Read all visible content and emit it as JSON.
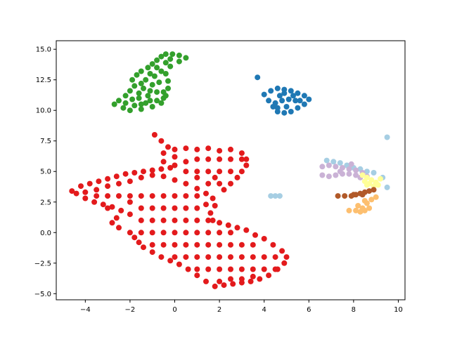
{
  "chart_data": {
    "type": "scatter",
    "title": "",
    "xlabel": "",
    "ylabel": "",
    "xlim": [
      -5.3,
      10.3
    ],
    "ylim": [
      -5.5,
      15.7
    ],
    "x_ticks": [
      -4,
      -2,
      0,
      2,
      4,
      6,
      8,
      10
    ],
    "x_tick_labels": [
      "−4",
      "−2",
      "0",
      "2",
      "4",
      "6",
      "8",
      "10"
    ],
    "y_ticks": [
      -5.0,
      -2.5,
      0.0,
      2.5,
      5.0,
      7.5,
      10.0,
      12.5,
      15.0
    ],
    "y_tick_labels": [
      "−5.0",
      "−2.5",
      "0.0",
      "2.5",
      "5.0",
      "7.5",
      "10.0",
      "12.5",
      "15.0"
    ],
    "grid": false,
    "legend": "none",
    "marker_radius": 4,
    "series": [
      {
        "color": "#e31a1c",
        "points": [
          [
            -4.6,
            3.4
          ],
          [
            -4.2,
            3.8
          ],
          [
            -3.8,
            4.0
          ],
          [
            -3.4,
            4.2
          ],
          [
            -3.0,
            4.4
          ],
          [
            -2.6,
            4.6
          ],
          [
            -2.2,
            4.8
          ],
          [
            -1.8,
            4.9
          ],
          [
            -1.4,
            5.0
          ],
          [
            -1.0,
            5.1
          ],
          [
            -0.6,
            5.2
          ],
          [
            -0.2,
            5.3
          ],
          [
            -0.9,
            8.0
          ],
          [
            -0.6,
            7.5
          ],
          [
            -0.3,
            7.0
          ],
          [
            0.0,
            6.8
          ],
          [
            0.5,
            6.9
          ],
          [
            1.0,
            6.8
          ],
          [
            1.5,
            6.9
          ],
          [
            2.0,
            6.7
          ],
          [
            2.5,
            6.8
          ],
          [
            3.0,
            6.5
          ],
          [
            3.2,
            6.0
          ],
          [
            3.2,
            5.5
          ],
          [
            3.0,
            5.0
          ],
          [
            2.8,
            4.5
          ],
          [
            2.5,
            4.0
          ],
          [
            -4.4,
            3.2
          ],
          [
            -4.0,
            2.8
          ],
          [
            -3.6,
            2.5
          ],
          [
            -3.2,
            2.3
          ],
          [
            -2.8,
            2.1
          ],
          [
            -2.4,
            1.8
          ],
          [
            -2.0,
            1.5
          ],
          [
            -2.6,
            1.2
          ],
          [
            -2.8,
            0.8
          ],
          [
            -2.5,
            0.4
          ],
          [
            -2.0,
            0.0
          ],
          [
            -1.8,
            -0.4
          ],
          [
            -1.6,
            -0.8
          ],
          [
            -1.4,
            -1.2
          ],
          [
            -1.0,
            -1.6
          ],
          [
            -0.6,
            -2.0
          ],
          [
            -0.2,
            -2.3
          ],
          [
            0.2,
            -2.6
          ],
          [
            0.6,
            -3.0
          ],
          [
            1.0,
            -3.5
          ],
          [
            1.4,
            -4.0
          ],
          [
            1.8,
            -4.4
          ],
          [
            2.2,
            -4.3
          ],
          [
            2.6,
            -4.2
          ],
          [
            3.0,
            -4.1
          ],
          [
            3.4,
            -4.0
          ],
          [
            3.8,
            -3.8
          ],
          [
            4.2,
            -3.5
          ],
          [
            4.6,
            -3.0
          ],
          [
            4.9,
            -2.5
          ],
          [
            5.0,
            -2.0
          ],
          [
            4.8,
            -1.5
          ],
          [
            4.4,
            -1.0
          ],
          [
            4.0,
            -0.5
          ],
          [
            3.6,
            -0.2
          ],
          [
            3.2,
            0.2
          ],
          [
            2.8,
            0.4
          ],
          [
            2.4,
            0.6
          ],
          [
            2.0,
            0.8
          ],
          [
            1.7,
            1.0
          ],
          [
            1.6,
            1.6
          ],
          [
            1.8,
            2.2
          ],
          [
            1.7,
            2.8
          ],
          [
            1.4,
            3.2
          ],
          [
            1.0,
            3.6
          ],
          [
            0.5,
            4.0
          ],
          [
            0.0,
            4.3
          ],
          [
            -0.5,
            4.6
          ],
          [
            -1.0,
            4.7
          ],
          [
            -1.5,
            4.5
          ],
          [
            -2.0,
            4.2
          ],
          [
            -2.5,
            4.0
          ],
          [
            -3.0,
            3.8
          ],
          [
            -3.5,
            3.5
          ],
          [
            -4.0,
            3.3
          ],
          [
            -3.5,
            3.0
          ],
          [
            -3.0,
            3.0
          ],
          [
            -2.5,
            3.0
          ],
          [
            -2.0,
            3.0
          ],
          [
            -1.5,
            3.0
          ],
          [
            -1.0,
            3.0
          ],
          [
            -0.5,
            3.0
          ],
          [
            0.0,
            3.0
          ],
          [
            0.5,
            3.0
          ],
          [
            1.0,
            3.0
          ],
          [
            -3.0,
            2.0
          ],
          [
            -2.0,
            2.5
          ],
          [
            -1.5,
            2.0
          ],
          [
            -1.0,
            2.0
          ],
          [
            -0.5,
            2.0
          ],
          [
            0.0,
            2.0
          ],
          [
            0.5,
            2.0
          ],
          [
            1.0,
            2.0
          ],
          [
            1.4,
            2.3
          ],
          [
            -1.5,
            1.0
          ],
          [
            -1.0,
            1.0
          ],
          [
            -0.5,
            1.0
          ],
          [
            0.0,
            1.0
          ],
          [
            0.5,
            1.0
          ],
          [
            1.0,
            1.0
          ],
          [
            1.5,
            1.0
          ],
          [
            -1.5,
            0.0
          ],
          [
            -1.0,
            0.0
          ],
          [
            -0.5,
            0.0
          ],
          [
            0.0,
            0.0
          ],
          [
            0.5,
            0.0
          ],
          [
            1.0,
            0.0
          ],
          [
            1.5,
            0.0
          ],
          [
            2.0,
            0.0
          ],
          [
            2.5,
            0.0
          ],
          [
            -1.0,
            -1.0
          ],
          [
            -0.5,
            -1.0
          ],
          [
            0.0,
            -1.0
          ],
          [
            0.5,
            -1.0
          ],
          [
            1.0,
            -1.0
          ],
          [
            1.5,
            -1.0
          ],
          [
            2.0,
            -1.0
          ],
          [
            2.5,
            -1.0
          ],
          [
            3.0,
            -1.0
          ],
          [
            3.5,
            -1.0
          ],
          [
            0.0,
            -2.0
          ],
          [
            0.5,
            -2.0
          ],
          [
            1.0,
            -2.0
          ],
          [
            1.5,
            -2.0
          ],
          [
            2.0,
            -2.0
          ],
          [
            2.5,
            -2.0
          ],
          [
            3.0,
            -2.0
          ],
          [
            3.5,
            -2.0
          ],
          [
            4.0,
            -2.0
          ],
          [
            4.5,
            -2.0
          ],
          [
            1.0,
            -3.0
          ],
          [
            1.5,
            -3.0
          ],
          [
            2.0,
            -3.0
          ],
          [
            2.5,
            -3.0
          ],
          [
            3.0,
            -3.0
          ],
          [
            3.5,
            -3.0
          ],
          [
            4.0,
            -3.0
          ],
          [
            4.5,
            -3.0
          ],
          [
            2.0,
            -4.0
          ],
          [
            2.5,
            -3.8
          ],
          [
            3.0,
            -3.8
          ],
          [
            3.5,
            -3.6
          ],
          [
            0.0,
            5.5
          ],
          [
            0.5,
            5.8
          ],
          [
            1.0,
            6.0
          ],
          [
            1.5,
            6.0
          ],
          [
            2.0,
            6.0
          ],
          [
            2.5,
            6.0
          ],
          [
            3.0,
            6.0
          ],
          [
            0.5,
            5.0
          ],
          [
            1.0,
            5.0
          ],
          [
            1.5,
            5.0
          ],
          [
            2.0,
            5.0
          ],
          [
            2.5,
            5.0
          ],
          [
            1.5,
            4.0
          ],
          [
            2.0,
            4.0
          ],
          [
            2.2,
            3.5
          ],
          [
            1.0,
            4.5
          ],
          [
            1.8,
            4.5
          ],
          [
            -0.5,
            5.8
          ],
          [
            -0.5,
            6.5
          ],
          [
            0.0,
            6.2
          ]
        ]
      },
      {
        "color": "#33a02c",
        "points": [
          [
            -2.7,
            10.5
          ],
          [
            -2.5,
            10.8
          ],
          [
            -2.3,
            10.2
          ],
          [
            -2.0,
            10.0
          ],
          [
            -1.8,
            10.4
          ],
          [
            -1.5,
            10.1
          ],
          [
            -1.3,
            10.6
          ],
          [
            -1.0,
            10.3
          ],
          [
            -0.8,
            10.8
          ],
          [
            -0.5,
            11.0
          ],
          [
            -2.2,
            11.2
          ],
          [
            -2.0,
            11.6
          ],
          [
            -1.8,
            12.0
          ],
          [
            -1.9,
            12.5
          ],
          [
            -1.7,
            12.9
          ],
          [
            -1.5,
            13.2
          ],
          [
            -1.2,
            13.5
          ],
          [
            -1.0,
            13.8
          ],
          [
            -0.8,
            14.1
          ],
          [
            -0.6,
            14.4
          ],
          [
            -0.4,
            14.6
          ],
          [
            -0.1,
            14.6
          ],
          [
            0.2,
            14.5
          ],
          [
            0.5,
            14.3
          ],
          [
            0.2,
            14.0
          ],
          [
            -0.2,
            13.6
          ],
          [
            -0.4,
            13.0
          ],
          [
            -0.3,
            12.4
          ],
          [
            -0.3,
            11.8
          ],
          [
            -0.4,
            11.2
          ],
          [
            -1.6,
            11.0
          ],
          [
            -1.2,
            11.2
          ],
          [
            -0.8,
            11.5
          ],
          [
            -1.4,
            11.8
          ],
          [
            -1.0,
            12.1
          ],
          [
            -0.7,
            12.3
          ],
          [
            -1.3,
            12.5
          ],
          [
            -0.9,
            12.8
          ],
          [
            -0.6,
            13.2
          ],
          [
            -0.8,
            13.5
          ],
          [
            -0.4,
            13.9
          ],
          [
            -0.2,
            14.2
          ],
          [
            -1.5,
            10.5
          ],
          [
            -1.1,
            10.8
          ],
          [
            -2.2,
            10.6
          ],
          [
            -1.9,
            10.9
          ],
          [
            -1.6,
            11.4
          ],
          [
            -1.1,
            11.6
          ],
          [
            -0.6,
            10.6
          ],
          [
            -0.5,
            11.5
          ],
          [
            -1.5,
            12.2
          ],
          [
            -1.1,
            13.0
          ]
        ]
      },
      {
        "color": "#1f78b4",
        "points": [
          [
            3.7,
            12.7
          ],
          [
            4.0,
            11.3
          ],
          [
            4.3,
            11.6
          ],
          [
            4.6,
            11.8
          ],
          [
            4.9,
            11.7
          ],
          [
            5.2,
            11.6
          ],
          [
            5.5,
            11.4
          ],
          [
            5.8,
            11.2
          ],
          [
            6.0,
            10.9
          ],
          [
            5.8,
            10.5
          ],
          [
            5.5,
            10.2
          ],
          [
            5.2,
            9.9
          ],
          [
            4.9,
            9.8
          ],
          [
            4.6,
            9.9
          ],
          [
            4.4,
            10.3
          ],
          [
            4.2,
            10.8
          ],
          [
            4.5,
            10.6
          ],
          [
            4.8,
            10.8
          ],
          [
            5.1,
            10.9
          ],
          [
            5.4,
            10.8
          ],
          [
            5.0,
            10.3
          ],
          [
            4.7,
            11.2
          ],
          [
            5.3,
            11.2
          ],
          [
            4.9,
            11.4
          ],
          [
            5.6,
            10.8
          ],
          [
            4.6,
            10.2
          ]
        ]
      },
      {
        "color": "#a6cee3",
        "points": [
          [
            6.8,
            5.9
          ],
          [
            7.1,
            5.8
          ],
          [
            7.4,
            5.7
          ],
          [
            7.7,
            5.5
          ],
          [
            8.0,
            5.3
          ],
          [
            8.3,
            5.2
          ],
          [
            8.6,
            5.0
          ],
          [
            8.9,
            4.9
          ],
          [
            9.3,
            4.5
          ],
          [
            9.5,
            3.7
          ],
          [
            9.5,
            7.8
          ],
          [
            4.3,
            3.0
          ],
          [
            4.5,
            3.0
          ],
          [
            4.7,
            3.0
          ]
        ]
      },
      {
        "color": "#cab2d6",
        "points": [
          [
            6.6,
            5.4
          ],
          [
            6.9,
            5.5
          ],
          [
            7.2,
            5.4
          ],
          [
            7.5,
            5.3
          ],
          [
            7.8,
            5.2
          ],
          [
            8.1,
            5.1
          ],
          [
            8.4,
            4.9
          ],
          [
            8.6,
            4.6
          ],
          [
            6.6,
            4.7
          ],
          [
            6.9,
            4.6
          ],
          [
            7.2,
            4.7
          ],
          [
            7.5,
            4.8
          ],
          [
            7.8,
            4.8
          ],
          [
            8.1,
            4.7
          ],
          [
            7.9,
            5.6
          ],
          [
            7.4,
            5.0
          ],
          [
            8.3,
            4.5
          ]
        ]
      },
      {
        "color": "#ffff99",
        "points": [
          [
            8.4,
            4.7
          ],
          [
            8.6,
            4.5
          ],
          [
            8.8,
            4.3
          ],
          [
            9.0,
            4.1
          ],
          [
            9.1,
            3.9
          ],
          [
            8.7,
            4.0
          ],
          [
            8.5,
            4.2
          ],
          [
            8.9,
            3.8
          ],
          [
            9.2,
            4.4
          ],
          [
            8.6,
            3.9
          ]
        ]
      },
      {
        "color": "#b15928",
        "points": [
          [
            7.3,
            3.0
          ],
          [
            7.6,
            3.0
          ],
          [
            7.9,
            3.0
          ],
          [
            8.1,
            3.1
          ],
          [
            8.3,
            3.2
          ],
          [
            8.5,
            3.3
          ],
          [
            8.7,
            3.4
          ],
          [
            8.9,
            3.5
          ],
          [
            8.4,
            3.1
          ],
          [
            8.0,
            3.1
          ]
        ]
      },
      {
        "color": "#fdbf6f",
        "points": [
          [
            7.8,
            1.8
          ],
          [
            8.1,
            1.8
          ],
          [
            8.3,
            1.7
          ],
          [
            8.5,
            1.8
          ],
          [
            8.7,
            2.0
          ],
          [
            8.6,
            2.4
          ],
          [
            8.8,
            2.7
          ],
          [
            9.0,
            2.9
          ],
          [
            8.4,
            2.0
          ],
          [
            8.2,
            2.2
          ],
          [
            8.5,
            2.6
          ]
        ]
      }
    ]
  }
}
